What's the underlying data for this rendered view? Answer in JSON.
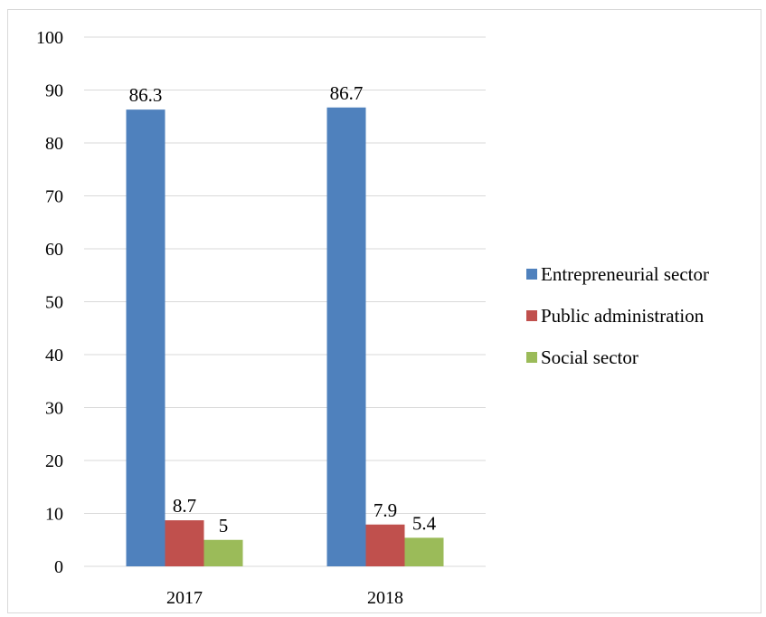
{
  "chart_data": {
    "type": "bar",
    "categories": [
      "2017",
      "2018"
    ],
    "series": [
      {
        "name": "Entrepreneurial sector",
        "values": [
          86.3,
          86.7
        ],
        "color": "#4f81bd"
      },
      {
        "name": "Public administration",
        "values": [
          8.7,
          7.9
        ],
        "color": "#c0504d"
      },
      {
        "name": "Social sector",
        "values": [
          5,
          5.4
        ],
        "color": "#9bbb59"
      }
    ],
    "data_labels": [
      [
        "86.3",
        "86.7"
      ],
      [
        "8.7",
        "7.9"
      ],
      [
        "5",
        "5.4"
      ]
    ],
    "ylim": [
      0,
      100
    ],
    "yticks": [
      0,
      10,
      20,
      30,
      40,
      50,
      60,
      70,
      80,
      90,
      100
    ],
    "ytick_labels": [
      "0",
      "10",
      "20",
      "30",
      "40",
      "50",
      "60",
      "70",
      "80",
      "90",
      "100"
    ],
    "grid": true,
    "legend_position": "right",
    "gridline_color": "#d9d9d9"
  }
}
